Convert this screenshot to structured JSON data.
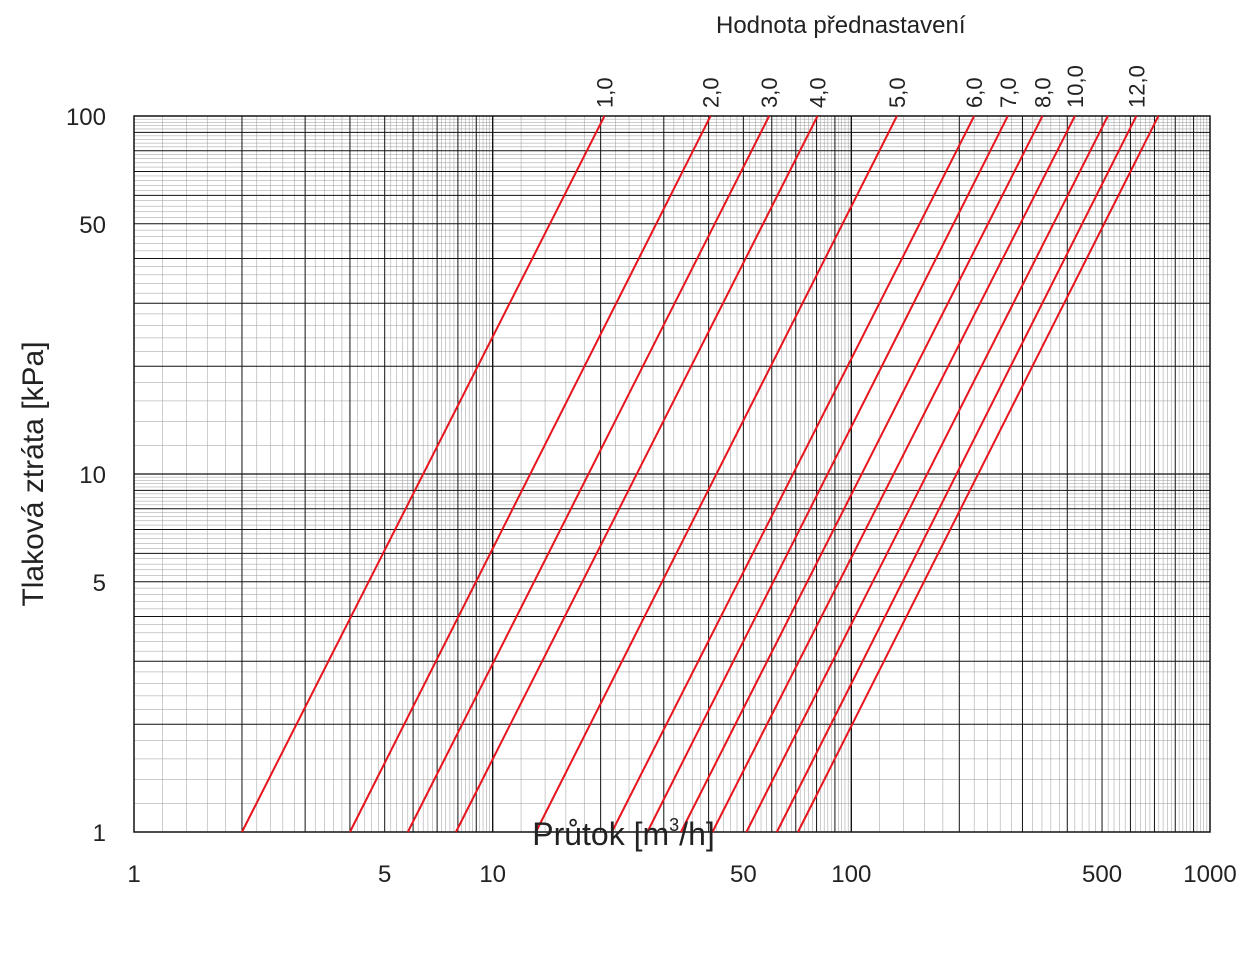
{
  "chart_data": {
    "type": "line",
    "title": "",
    "series_title": "Hodnota přednastavení",
    "xlabel": "Průtok  [m³/h]",
    "xlabel_parts": {
      "before": "Průtok  [m",
      "sup": "3",
      "after": "/h]"
    },
    "ylabel": "Tlaková ztráta  [kPa]",
    "xscale": "log",
    "yscale": "log",
    "xlim": [
      1,
      1000
    ],
    "ylim": [
      1,
      100
    ],
    "grid": true,
    "x_ticks": [
      {
        "value": 1,
        "label": "1"
      },
      {
        "value": 5,
        "label": "5"
      },
      {
        "value": 10,
        "label": "10"
      },
      {
        "value": 50,
        "label": "50"
      },
      {
        "value": 100,
        "label": "100"
      },
      {
        "value": 500,
        "label": "500"
      },
      {
        "value": 1000,
        "label": "1000"
      }
    ],
    "y_ticks": [
      {
        "value": 1,
        "label": "1"
      },
      {
        "value": 5,
        "label": "5"
      },
      {
        "value": 10,
        "label": "10"
      },
      {
        "value": 50,
        "label": "50"
      },
      {
        "value": 100,
        "label": "100"
      }
    ],
    "series": [
      {
        "name": "1,0",
        "x": [
          2.0,
          20.5
        ]
      },
      {
        "name": "2,0",
        "x": [
          4.0,
          40.5
        ]
      },
      {
        "name": "3,0",
        "x": [
          5.8,
          59
        ]
      },
      {
        "name": "4,0",
        "x": [
          7.9,
          80.5
        ]
      },
      {
        "name": "5,0",
        "x": [
          13.2,
          134
        ]
      },
      {
        "name": "6,0",
        "x": [
          21.5,
          220
        ]
      },
      {
        "name": "7,0",
        "x": [
          27,
          273
        ]
      },
      {
        "name": "8,0",
        "x": [
          33.5,
          341
        ]
      },
      {
        "name": "10,0",
        "x": [
          41,
          420
        ]
      },
      {
        "name": "",
        "x": [
          51,
          519
        ]
      },
      {
        "name": "12,0",
        "x": [
          62,
          623
        ]
      },
      {
        "name": "",
        "x": [
          71,
          718
        ]
      }
    ],
    "series_y": [
      1,
      100
    ],
    "line_color": "#e8141e",
    "grid_major_color": "#111111",
    "grid_minor_color": "#9a9a9a"
  }
}
